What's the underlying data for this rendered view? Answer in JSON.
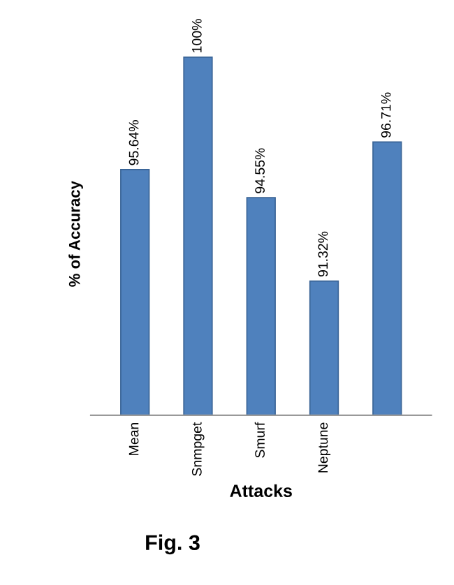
{
  "chart_data": {
    "type": "bar",
    "xlabel": "Attacks",
    "ylabel": "% of Accuracy",
    "categories": [
      "Mean",
      "Snmpget",
      "Smurf",
      "Neptune",
      null
    ],
    "values": [
      95.64,
      100,
      94.55,
      91.32,
      96.71
    ],
    "value_labels": [
      "95.64%",
      "100%",
      "94.55%",
      "91.32%",
      "96.71%"
    ],
    "color": "#4f81bd",
    "tick_labels": "x",
    "grid": false,
    "annotations": [
      "Fig. 3"
    ]
  }
}
